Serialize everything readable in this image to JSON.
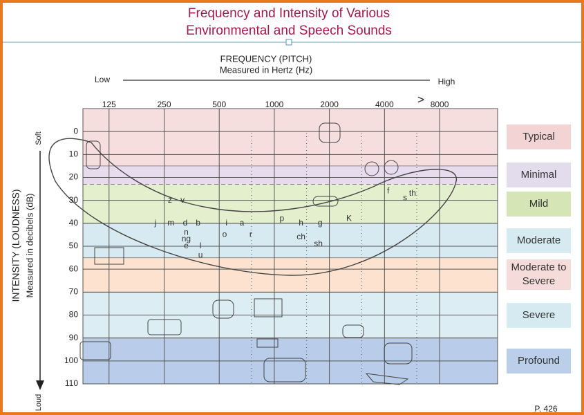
{
  "chart_data": {
    "type": "audiogram",
    "title_lines": [
      "Frequency and Intensity of Various",
      "Environmental and Speech Sounds"
    ],
    "x_title": "FREQUENCY (PITCH)",
    "x_subtitle": "Measured in Hertz (Hz)",
    "x_low": "Low",
    "x_high": "High",
    "x_more": ">",
    "y_title": "INTENSITY (LOUDNESS)",
    "y_subtitle": "Measured in decibels (dB)",
    "y_soft": "Soft",
    "y_loud": "Loud",
    "page_note": "P. 426",
    "xscale": "log",
    "xlim": [
      90,
      16600
    ],
    "xticks": [
      125,
      250,
      500,
      1000,
      2000,
      4000,
      8000
    ],
    "xminor": [
      750,
      1500,
      3000,
      6000
    ],
    "ylim": [
      -10,
      110
    ],
    "yticks": [
      0,
      10,
      20,
      30,
      40,
      50,
      60,
      70,
      80,
      90,
      100,
      110
    ],
    "grid": true,
    "bands": [
      {
        "name": "Typical",
        "range": [
          -10,
          15
        ],
        "color": "#f7dede",
        "label_color": "#f3d3d3"
      },
      {
        "name": "Minimal",
        "range": [
          15,
          23
        ],
        "color": "#e6dcee",
        "label_color": "#e2dced"
      },
      {
        "name": "Mild",
        "range": [
          23,
          40
        ],
        "color": "#e4efcd",
        "label_color": "#d5e5b5"
      },
      {
        "name": "Moderate",
        "range": [
          40,
          55
        ],
        "color": "#d7eaf2",
        "label_color": "#d6eaf2"
      },
      {
        "name": "Moderate to Severe",
        "range": [
          55,
          70
        ],
        "color": "#fce2cf",
        "label_color": "#f5dbd9"
      },
      {
        "name": "Severe",
        "range": [
          70,
          90
        ],
        "color": "#dceef4",
        "label_color": "#d6eaf2"
      },
      {
        "name": "Profound",
        "range": [
          90,
          110
        ],
        "color": "#b9cdea",
        "label_color": "#bccfea"
      }
    ],
    "speech_sounds": [
      {
        "label": "z",
        "x": 269,
        "y": 30
      },
      {
        "label": "v",
        "x": 315,
        "y": 30
      },
      {
        "label": "j",
        "x": 224,
        "y": 40
      },
      {
        "label": "m",
        "x": 272,
        "y": 40
      },
      {
        "label": "d",
        "x": 326,
        "y": 40
      },
      {
        "label": "b",
        "x": 383,
        "y": 40
      },
      {
        "label": "i",
        "x": 548,
        "y": 40
      },
      {
        "label": "a",
        "x": 665,
        "y": 40
      },
      {
        "label": "n",
        "x": 330,
        "y": 44
      },
      {
        "label": "ng",
        "x": 330,
        "y": 47
      },
      {
        "label": "e",
        "x": 330,
        "y": 50
      },
      {
        "label": "l",
        "x": 395,
        "y": 50
      },
      {
        "label": "u",
        "x": 395,
        "y": 54
      },
      {
        "label": "o",
        "x": 535,
        "y": 45
      },
      {
        "label": "r",
        "x": 744,
        "y": 45
      },
      {
        "label": "p",
        "x": 1100,
        "y": 38
      },
      {
        "label": "h",
        "x": 1400,
        "y": 40
      },
      {
        "label": "g",
        "x": 1780,
        "y": 40
      },
      {
        "label": "ch",
        "x": 1400,
        "y": 46
      },
      {
        "label": "sh",
        "x": 1740,
        "y": 49
      },
      {
        "label": "K",
        "x": 2560,
        "y": 38
      },
      {
        "label": "f",
        "x": 4190,
        "y": 26
      },
      {
        "label": "s",
        "x": 5180,
        "y": 29
      },
      {
        "label": "th",
        "x": 5690,
        "y": 27
      }
    ]
  }
}
